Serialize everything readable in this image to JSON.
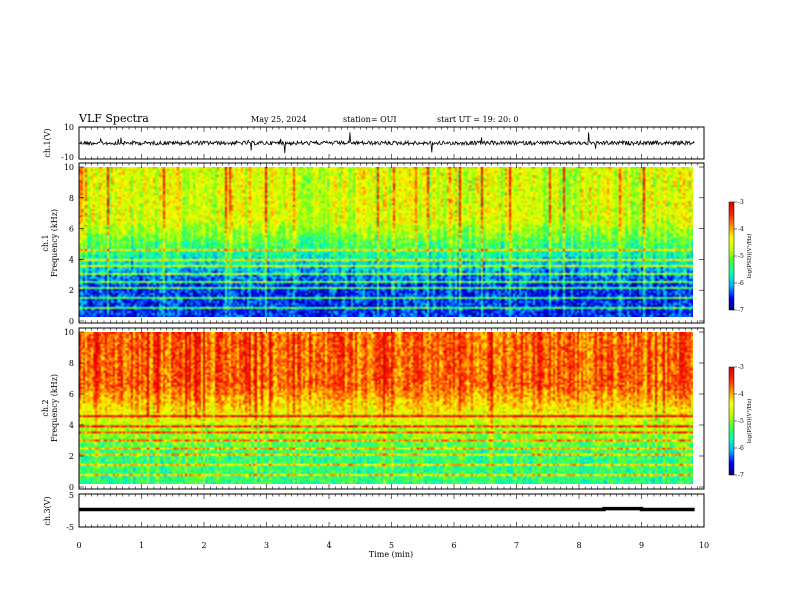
{
  "header": {
    "title": "VLF Spectra",
    "date": "May 25, 2024",
    "station": "station= OUI",
    "start": "start  UT  =    19: 20: 0"
  },
  "colors": {
    "colormap": [
      "#00007f",
      "#0000ff",
      "#00b0ff",
      "#00ffc0",
      "#40ff40",
      "#c0ff00",
      "#ffff00",
      "#ff9000",
      "#ff2000",
      "#e00000"
    ],
    "trace": "#000000",
    "background": "#ffffff"
  },
  "chart_data": [
    {
      "type": "line",
      "panel": "waveform",
      "ylabel": "ch.1(V)",
      "ylim": [
        -10,
        10
      ],
      "yticks": [
        "10",
        "-10"
      ],
      "xlim": [
        0,
        10
      ],
      "series": [
        {
          "values": "noisy waveform near 0 V with occasional spikes"
        }
      ]
    },
    {
      "type": "heatmap",
      "panel": "spectrogram-1",
      "ylabel_top": "ch.1",
      "ylabel": "Frequency (kHz)",
      "ylim": [
        0,
        10
      ],
      "yticks": [
        "0",
        "2",
        "4",
        "6",
        "8",
        "10"
      ],
      "xlim": [
        0,
        9.85
      ],
      "colorbar_label": "log(PSD)(V²/Hz)",
      "colorbar_ticks": [
        "-3",
        "-4",
        "-5",
        "-6",
        "-7"
      ],
      "clim": [
        -7,
        -3
      ],
      "description_levels": {
        "high_freq": -4.6,
        "low_freq": -6.5
      }
    },
    {
      "type": "heatmap",
      "panel": "spectrogram-2",
      "ylabel_top": "ch.2",
      "ylabel": "Frequency (kHz)",
      "ylim": [
        0,
        10
      ],
      "yticks": [
        "0",
        "2",
        "4",
        "6",
        "8",
        "10"
      ],
      "xlim": [
        0,
        9.85
      ],
      "colorbar_label": "log(PSD)(V²/Hz)",
      "colorbar_ticks": [
        "-3",
        "-4",
        "-5",
        "-6",
        "-7"
      ],
      "clim": [
        -7,
        -3
      ],
      "description_levels": {
        "high_freq": -3.7,
        "low_freq": -5.4
      }
    },
    {
      "type": "line",
      "panel": "ch3",
      "ylabel": "ch.3(V)",
      "ylim": [
        -5,
        5
      ],
      "yticks": [
        "5",
        "0",
        "-5"
      ],
      "xlim": [
        0,
        10
      ],
      "xlabel": "Time  (min)",
      "xticks": [
        "0",
        "1",
        "2",
        "3",
        "4",
        "5",
        "6",
        "7",
        "8",
        "9",
        "10"
      ],
      "series": [
        {
          "values": [
            [
              0,
              0
            ],
            [
              8.4,
              0
            ],
            [
              8.4,
              0.3
            ],
            [
              9.0,
              0.3
            ],
            [
              9.0,
              0
            ],
            [
              9.85,
              0
            ]
          ]
        }
      ]
    }
  ]
}
